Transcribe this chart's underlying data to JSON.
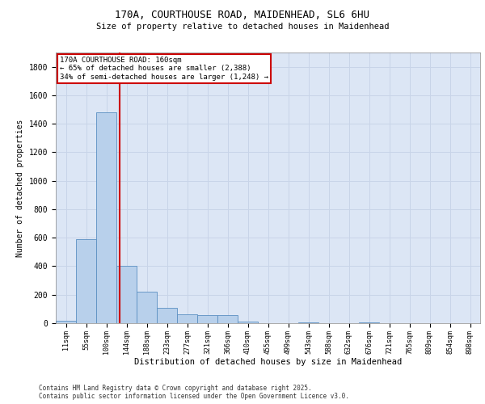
{
  "title_line1": "170A, COURTHOUSE ROAD, MAIDENHEAD, SL6 6HU",
  "title_line2": "Size of property relative to detached houses in Maidenhead",
  "xlabel": "Distribution of detached houses by size in Maidenhead",
  "ylabel": "Number of detached properties",
  "footer_line1": "Contains HM Land Registry data © Crown copyright and database right 2025.",
  "footer_line2": "Contains public sector information licensed under the Open Government Licence v3.0.",
  "annotation_line1": "170A COURTHOUSE ROAD: 160sqm",
  "annotation_line2": "← 65% of detached houses are smaller (2,388)",
  "annotation_line3": "34% of semi-detached houses are larger (1,248) →",
  "categories": [
    "11sqm",
    "55sqm",
    "100sqm",
    "144sqm",
    "188sqm",
    "233sqm",
    "277sqm",
    "321sqm",
    "366sqm",
    "410sqm",
    "455sqm",
    "499sqm",
    "543sqm",
    "588sqm",
    "632sqm",
    "676sqm",
    "721sqm",
    "765sqm",
    "809sqm",
    "854sqm",
    "898sqm"
  ],
  "values": [
    18,
    590,
    1480,
    400,
    220,
    105,
    65,
    55,
    55,
    10,
    0,
    0,
    5,
    0,
    0,
    5,
    0,
    0,
    0,
    0,
    0
  ],
  "bar_color": "#b8d0eb",
  "bar_edge_color": "#5a8fc2",
  "vline_x": 2.65,
  "vline_color": "#cc0000",
  "annotation_box_color": "#cc0000",
  "grid_color": "#c8d4e8",
  "background_color": "#dce6f5",
  "ylim": [
    0,
    1900
  ],
  "yticks": [
    0,
    200,
    400,
    600,
    800,
    1000,
    1200,
    1400,
    1600,
    1800
  ]
}
